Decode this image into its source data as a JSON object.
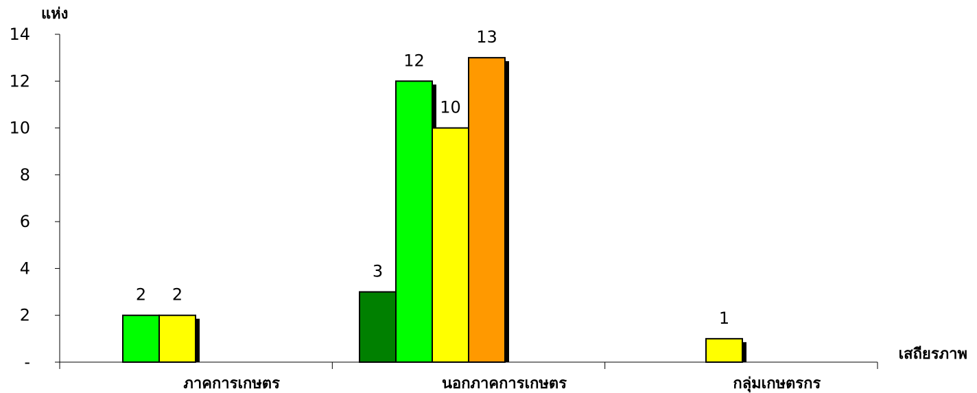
{
  "chart_data": {
    "type": "bar",
    "ylabel": "แห่ง",
    "xlabel": "เสถียรภาพ",
    "categories": [
      "ภาคการเกษตร",
      "นอกภาคการเกษตร",
      "กลุ่มเกษตรกร"
    ],
    "ylim": [
      0,
      14
    ],
    "yticks": [
      0,
      2,
      4,
      6,
      8,
      10,
      12,
      14
    ],
    "ytick_labels": [
      "-",
      "2",
      "4",
      "6",
      "8",
      "10",
      "12",
      "14"
    ],
    "colors": {
      "dark_green": "#008000",
      "green": "#00ff00",
      "yellow": "#ffff00",
      "orange": "#ff9900"
    },
    "groups": [
      {
        "category": "ภาคการเกษตร",
        "bars": [
          {
            "value": 2,
            "color": "green"
          },
          {
            "value": 2,
            "color": "yellow"
          }
        ]
      },
      {
        "category": "นอกภาคการเกษตร",
        "bars": [
          {
            "value": 3,
            "color": "dark_green"
          },
          {
            "value": 12,
            "color": "green"
          },
          {
            "value": 10,
            "color": "yellow"
          },
          {
            "value": 13,
            "color": "orange"
          }
        ]
      },
      {
        "category": "กลุ่มเกษตรกร",
        "bars": [
          {
            "value": 1,
            "color": "yellow"
          }
        ]
      }
    ]
  }
}
